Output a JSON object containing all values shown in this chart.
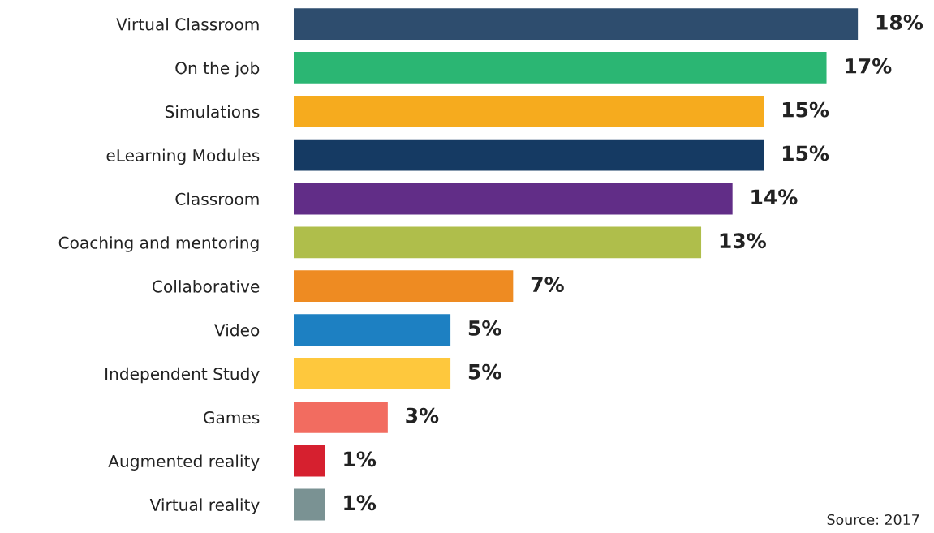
{
  "chart_data": {
    "type": "bar",
    "orientation": "horizontal",
    "categories": [
      "Virtual Classroom",
      "On the job",
      "Simulations",
      "eLearning Modules",
      "Classroom",
      "Coaching and mentoring",
      "Collaborative",
      "Video",
      "Independent Study",
      "Games",
      "Augmented reality",
      "Virtual reality"
    ],
    "values": [
      18,
      17,
      15,
      15,
      14,
      13,
      7,
      5,
      5,
      3,
      1,
      1
    ],
    "colors": [
      "#2e4d6e",
      "#2bb673",
      "#f6ab1e",
      "#153a63",
      "#612d87",
      "#afbe4b",
      "#ee8b22",
      "#1d80c2",
      "#fec83d",
      "#f26c60",
      "#d6202f",
      "#7a9293"
    ],
    "value_labels": [
      "18%",
      "17%",
      "15%",
      "15%",
      "14%",
      "13%",
      "7%",
      "5%",
      "5%",
      "3%",
      "1%",
      "1%"
    ],
    "annotations": [
      "Source: 2017"
    ]
  }
}
